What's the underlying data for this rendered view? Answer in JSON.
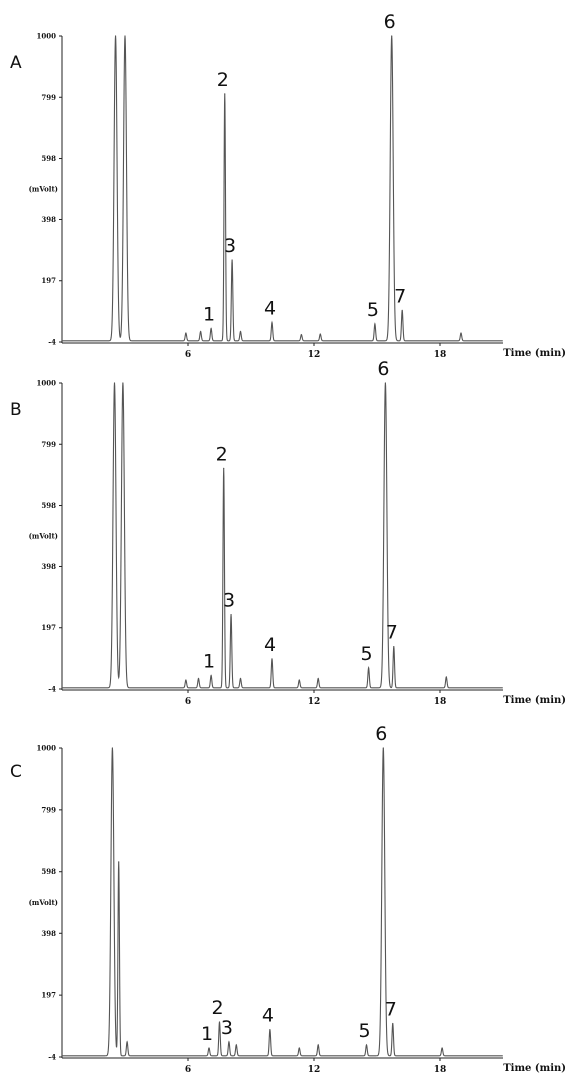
{
  "chart_data": [
    {
      "type": "line",
      "panel": "A",
      "xlabel": "Time (min)",
      "ylabel": "(mVolt)",
      "x_ticks": [
        "6",
        "12",
        "18"
      ],
      "y_ticks": [
        "-4",
        "197",
        "398",
        "598",
        "799",
        "1000"
      ],
      "xlim": [
        0,
        21
      ],
      "ylim": [
        -4,
        1000
      ],
      "peaks": [
        {
          "label": "",
          "x": 2.55,
          "y": 1000
        },
        {
          "label": "",
          "x": 3.0,
          "y": 1000
        },
        {
          "label": "",
          "x": 5.9,
          "y": 25
        },
        {
          "label": "",
          "x": 6.6,
          "y": 30
        },
        {
          "label": "1",
          "x": 7.1,
          "y": 40
        },
        {
          "label": "2",
          "x": 7.75,
          "y": 810
        },
        {
          "label": "3",
          "x": 8.1,
          "y": 265
        },
        {
          "label": "",
          "x": 8.5,
          "y": 30
        },
        {
          "label": "4",
          "x": 10.0,
          "y": 60
        },
        {
          "label": "",
          "x": 11.4,
          "y": 20
        },
        {
          "label": "",
          "x": 12.3,
          "y": 22
        },
        {
          "label": "5",
          "x": 14.9,
          "y": 55
        },
        {
          "label": "6",
          "x": 15.7,
          "y": 1000
        },
        {
          "label": "7",
          "x": 16.2,
          "y": 100
        },
        {
          "label": "",
          "x": 19.0,
          "y": 25
        }
      ]
    },
    {
      "type": "line",
      "panel": "B",
      "xlabel": "Time (min)",
      "ylabel": "(mVolt)",
      "x_ticks": [
        "6",
        "12",
        "18"
      ],
      "y_ticks": [
        "-4",
        "197",
        "398",
        "598",
        "799",
        "1000"
      ],
      "xlim": [
        0,
        21
      ],
      "ylim": [
        -4,
        1000
      ],
      "peaks": [
        {
          "label": "",
          "x": 2.5,
          "y": 1000
        },
        {
          "label": "",
          "x": 2.9,
          "y": 1000
        },
        {
          "label": "",
          "x": 5.9,
          "y": 25
        },
        {
          "label": "",
          "x": 6.5,
          "y": 30
        },
        {
          "label": "1",
          "x": 7.1,
          "y": 40
        },
        {
          "label": "2",
          "x": 7.7,
          "y": 720
        },
        {
          "label": "3",
          "x": 8.05,
          "y": 240
        },
        {
          "label": "",
          "x": 8.5,
          "y": 30
        },
        {
          "label": "4",
          "x": 10.0,
          "y": 95
        },
        {
          "label": "",
          "x": 11.3,
          "y": 25
        },
        {
          "label": "",
          "x": 12.2,
          "y": 30
        },
        {
          "label": "5",
          "x": 14.6,
          "y": 65
        },
        {
          "label": "6",
          "x": 15.4,
          "y": 1000
        },
        {
          "label": "7",
          "x": 15.8,
          "y": 135
        },
        {
          "label": "",
          "x": 18.3,
          "y": 35
        }
      ]
    },
    {
      "type": "line",
      "panel": "C",
      "xlabel": "Time (min)",
      "ylabel": "(mVolt)",
      "x_ticks": [
        "6",
        "12",
        "18"
      ],
      "y_ticks": [
        "-4",
        "197",
        "398",
        "598",
        "799",
        "1000"
      ],
      "xlim": [
        0,
        21
      ],
      "ylim": [
        -4,
        1000
      ],
      "peaks": [
        {
          "label": "",
          "x": 2.4,
          "y": 1000
        },
        {
          "label": "",
          "x": 2.7,
          "y": 630
        },
        {
          "label": "",
          "x": 3.1,
          "y": 45
        },
        {
          "label": "1",
          "x": 7.0,
          "y": 25
        },
        {
          "label": "2",
          "x": 7.5,
          "y": 110
        },
        {
          "label": "3",
          "x": 7.95,
          "y": 45
        },
        {
          "label": "",
          "x": 8.3,
          "y": 35
        },
        {
          "label": "4",
          "x": 9.9,
          "y": 85
        },
        {
          "label": "",
          "x": 11.3,
          "y": 25
        },
        {
          "label": "",
          "x": 12.2,
          "y": 35
        },
        {
          "label": "5",
          "x": 14.5,
          "y": 35
        },
        {
          "label": "6",
          "x": 15.3,
          "y": 1000
        },
        {
          "label": "7",
          "x": 15.75,
          "y": 105
        },
        {
          "label": "",
          "x": 18.1,
          "y": 25
        }
      ]
    }
  ]
}
